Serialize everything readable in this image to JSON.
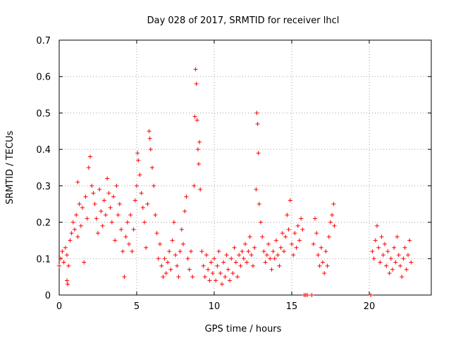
{
  "chart_data": {
    "type": "scatter",
    "title": "Day 028 of 2017, SRMTID for receiver lhcl",
    "xlabel": "GPS time / hours",
    "ylabel": "SRMTID / TECUs",
    "xlim": [
      0,
      24
    ],
    "ylim": [
      0,
      0.7
    ],
    "x_ticks": [
      0,
      5,
      10,
      15,
      20
    ],
    "x_tick_labels": [
      "0",
      "5",
      "10",
      "15",
      "20"
    ],
    "y_ticks": [
      0,
      0.1,
      0.2,
      0.3,
      0.4,
      0.5,
      0.6,
      0.7
    ],
    "y_tick_labels": [
      "0",
      "0.1",
      "0.2",
      "0.3",
      "0.4",
      "0.5",
      "0.6",
      "0.7"
    ],
    "grid": true,
    "marker": "+",
    "series_color": "#ff0000",
    "series": [
      {
        "name": "SRMTID",
        "points": [
          [
            0.0,
            0.08
          ],
          [
            0.1,
            0.1
          ],
          [
            0.2,
            0.12
          ],
          [
            0.3,
            0.09
          ],
          [
            0.4,
            0.13
          ],
          [
            0.5,
            0.11
          ],
          [
            0.5,
            0.04
          ],
          [
            0.55,
            0.03
          ],
          [
            0.6,
            0.08
          ],
          [
            0.7,
            0.15
          ],
          [
            0.8,
            0.17
          ],
          [
            0.9,
            0.2
          ],
          [
            1.0,
            0.18
          ],
          [
            1.1,
            0.22
          ],
          [
            1.2,
            0.16
          ],
          [
            1.2,
            0.31
          ],
          [
            1.3,
            0.25
          ],
          [
            1.4,
            0.19
          ],
          [
            1.5,
            0.24
          ],
          [
            1.6,
            0.09
          ],
          [
            1.7,
            0.27
          ],
          [
            1.8,
            0.21
          ],
          [
            1.9,
            0.35
          ],
          [
            2.0,
            0.38
          ],
          [
            2.1,
            0.3
          ],
          [
            2.2,
            0.28
          ],
          [
            2.3,
            0.25
          ],
          [
            2.4,
            0.21
          ],
          [
            2.5,
            0.17
          ],
          [
            2.6,
            0.29
          ],
          [
            2.7,
            0.23
          ],
          [
            2.8,
            0.19
          ],
          [
            2.9,
            0.26
          ],
          [
            3.0,
            0.22
          ],
          [
            3.1,
            0.32
          ],
          [
            3.2,
            0.28
          ],
          [
            3.3,
            0.24
          ],
          [
            3.4,
            0.2
          ],
          [
            3.5,
            0.27
          ],
          [
            3.6,
            0.15
          ],
          [
            3.7,
            0.3
          ],
          [
            3.8,
            0.22
          ],
          [
            3.9,
            0.25
          ],
          [
            4.0,
            0.18
          ],
          [
            4.1,
            0.12
          ],
          [
            4.2,
            0.05
          ],
          [
            4.3,
            0.16
          ],
          [
            4.4,
            0.2
          ],
          [
            4.5,
            0.14
          ],
          [
            4.6,
            0.22
          ],
          [
            4.7,
            0.12
          ],
          [
            4.8,
            0.18
          ],
          [
            4.9,
            0.26
          ],
          [
            5.0,
            0.3
          ],
          [
            5.05,
            0.39
          ],
          [
            5.1,
            0.37
          ],
          [
            5.2,
            0.33
          ],
          [
            5.3,
            0.28
          ],
          [
            5.4,
            0.24
          ],
          [
            5.5,
            0.2
          ],
          [
            5.6,
            0.13
          ],
          [
            5.7,
            0.25
          ],
          [
            5.8,
            0.45
          ],
          [
            5.85,
            0.43
          ],
          [
            5.9,
            0.4
          ],
          [
            6.0,
            0.35
          ],
          [
            6.1,
            0.3
          ],
          [
            6.2,
            0.22
          ],
          [
            6.3,
            0.17
          ],
          [
            6.4,
            0.1
          ],
          [
            6.5,
            0.14
          ],
          [
            6.6,
            0.08
          ],
          [
            6.7,
            0.05
          ],
          [
            6.8,
            0.1
          ],
          [
            6.9,
            0.06
          ],
          [
            7.0,
            0.09
          ],
          [
            7.1,
            0.12
          ],
          [
            7.2,
            0.07
          ],
          [
            7.3,
            0.15
          ],
          [
            7.4,
            0.2
          ],
          [
            7.5,
            0.11
          ],
          [
            7.6,
            0.08
          ],
          [
            7.7,
            0.05
          ],
          [
            7.8,
            0.12
          ],
          [
            7.9,
            0.18
          ],
          [
            8.0,
            0.14
          ],
          [
            8.1,
            0.23
          ],
          [
            8.2,
            0.27
          ],
          [
            8.3,
            0.1
          ],
          [
            8.4,
            0.07
          ],
          [
            8.5,
            0.12
          ],
          [
            8.6,
            0.05
          ],
          [
            8.7,
            0.3
          ],
          [
            8.75,
            0.49
          ],
          [
            8.8,
            0.62
          ],
          [
            8.85,
            0.58
          ],
          [
            8.9,
            0.48
          ],
          [
            8.95,
            0.4
          ],
          [
            9.0,
            0.36
          ],
          [
            9.05,
            0.42
          ],
          [
            9.1,
            0.29
          ],
          [
            9.2,
            0.12
          ],
          [
            9.3,
            0.08
          ],
          [
            9.4,
            0.05
          ],
          [
            9.5,
            0.11
          ],
          [
            9.6,
            0.07
          ],
          [
            9.7,
            0.04
          ],
          [
            9.8,
            0.09
          ],
          [
            9.9,
            0.06
          ],
          [
            10.0,
            0.1
          ],
          [
            10.1,
            0.04
          ],
          [
            10.2,
            0.08
          ],
          [
            10.3,
            0.12
          ],
          [
            10.4,
            0.06
          ],
          [
            10.5,
            0.03
          ],
          [
            10.6,
            0.09
          ],
          [
            10.7,
            0.05
          ],
          [
            10.8,
            0.11
          ],
          [
            10.9,
            0.07
          ],
          [
            11.0,
            0.04
          ],
          [
            11.1,
            0.1
          ],
          [
            11.2,
            0.06
          ],
          [
            11.3,
            0.13
          ],
          [
            11.4,
            0.09
          ],
          [
            11.5,
            0.05
          ],
          [
            11.6,
            0.11
          ],
          [
            11.7,
            0.08
          ],
          [
            11.8,
            0.12
          ],
          [
            11.9,
            0.1
          ],
          [
            12.0,
            0.14
          ],
          [
            12.1,
            0.09
          ],
          [
            12.2,
            0.12
          ],
          [
            12.3,
            0.16
          ],
          [
            12.4,
            0.11
          ],
          [
            12.5,
            0.08
          ],
          [
            12.6,
            0.13
          ],
          [
            12.7,
            0.29
          ],
          [
            12.75,
            0.5
          ],
          [
            12.8,
            0.47
          ],
          [
            12.85,
            0.39
          ],
          [
            12.9,
            0.25
          ],
          [
            13.0,
            0.2
          ],
          [
            13.1,
            0.16
          ],
          [
            13.2,
            0.12
          ],
          [
            13.3,
            0.09
          ],
          [
            13.4,
            0.11
          ],
          [
            13.5,
            0.14
          ],
          [
            13.6,
            0.1
          ],
          [
            13.7,
            0.07
          ],
          [
            13.8,
            0.12
          ],
          [
            13.9,
            0.1
          ],
          [
            14.0,
            0.15
          ],
          [
            14.1,
            0.11
          ],
          [
            14.2,
            0.08
          ],
          [
            14.3,
            0.13
          ],
          [
            14.4,
            0.17
          ],
          [
            14.5,
            0.12
          ],
          [
            14.6,
            0.16
          ],
          [
            14.7,
            0.22
          ],
          [
            14.8,
            0.18
          ],
          [
            14.9,
            0.26
          ],
          [
            15.0,
            0.14
          ],
          [
            15.1,
            0.11
          ],
          [
            15.2,
            0.17
          ],
          [
            15.3,
            0.13
          ],
          [
            15.4,
            0.19
          ],
          [
            15.5,
            0.15
          ],
          [
            15.6,
            0.21
          ],
          [
            15.7,
            0.18
          ],
          [
            15.8,
            0.0
          ],
          [
            15.9,
            0.0
          ],
          [
            16.0,
            0.0
          ],
          [
            16.3,
            0.0
          ],
          [
            16.4,
            0.14
          ],
          [
            16.5,
            0.21
          ],
          [
            16.6,
            0.17
          ],
          [
            16.7,
            0.11
          ],
          [
            16.8,
            0.08
          ],
          [
            16.9,
            0.13
          ],
          [
            17.0,
            0.09
          ],
          [
            17.1,
            0.06
          ],
          [
            17.2,
            0.12
          ],
          [
            17.3,
            0.08
          ],
          [
            17.4,
            0.16
          ],
          [
            17.5,
            0.2
          ],
          [
            17.6,
            0.22
          ],
          [
            17.7,
            0.25
          ],
          [
            17.75,
            0.19
          ],
          [
            20.1,
            0.0
          ],
          [
            20.2,
            0.12
          ],
          [
            20.3,
            0.1
          ],
          [
            20.4,
            0.15
          ],
          [
            20.5,
            0.19
          ],
          [
            20.6,
            0.13
          ],
          [
            20.7,
            0.09
          ],
          [
            20.8,
            0.16
          ],
          [
            20.9,
            0.11
          ],
          [
            21.0,
            0.14
          ],
          [
            21.1,
            0.08
          ],
          [
            21.2,
            0.12
          ],
          [
            21.3,
            0.06
          ],
          [
            21.4,
            0.1
          ],
          [
            21.5,
            0.07
          ],
          [
            21.6,
            0.13
          ],
          [
            21.7,
            0.09
          ],
          [
            21.8,
            0.16
          ],
          [
            21.9,
            0.11
          ],
          [
            22.0,
            0.08
          ],
          [
            22.1,
            0.05
          ],
          [
            22.2,
            0.1
          ],
          [
            22.3,
            0.13
          ],
          [
            22.4,
            0.07
          ],
          [
            22.5,
            0.11
          ],
          [
            22.6,
            0.15
          ],
          [
            22.7,
            0.09
          ]
        ]
      }
    ]
  }
}
